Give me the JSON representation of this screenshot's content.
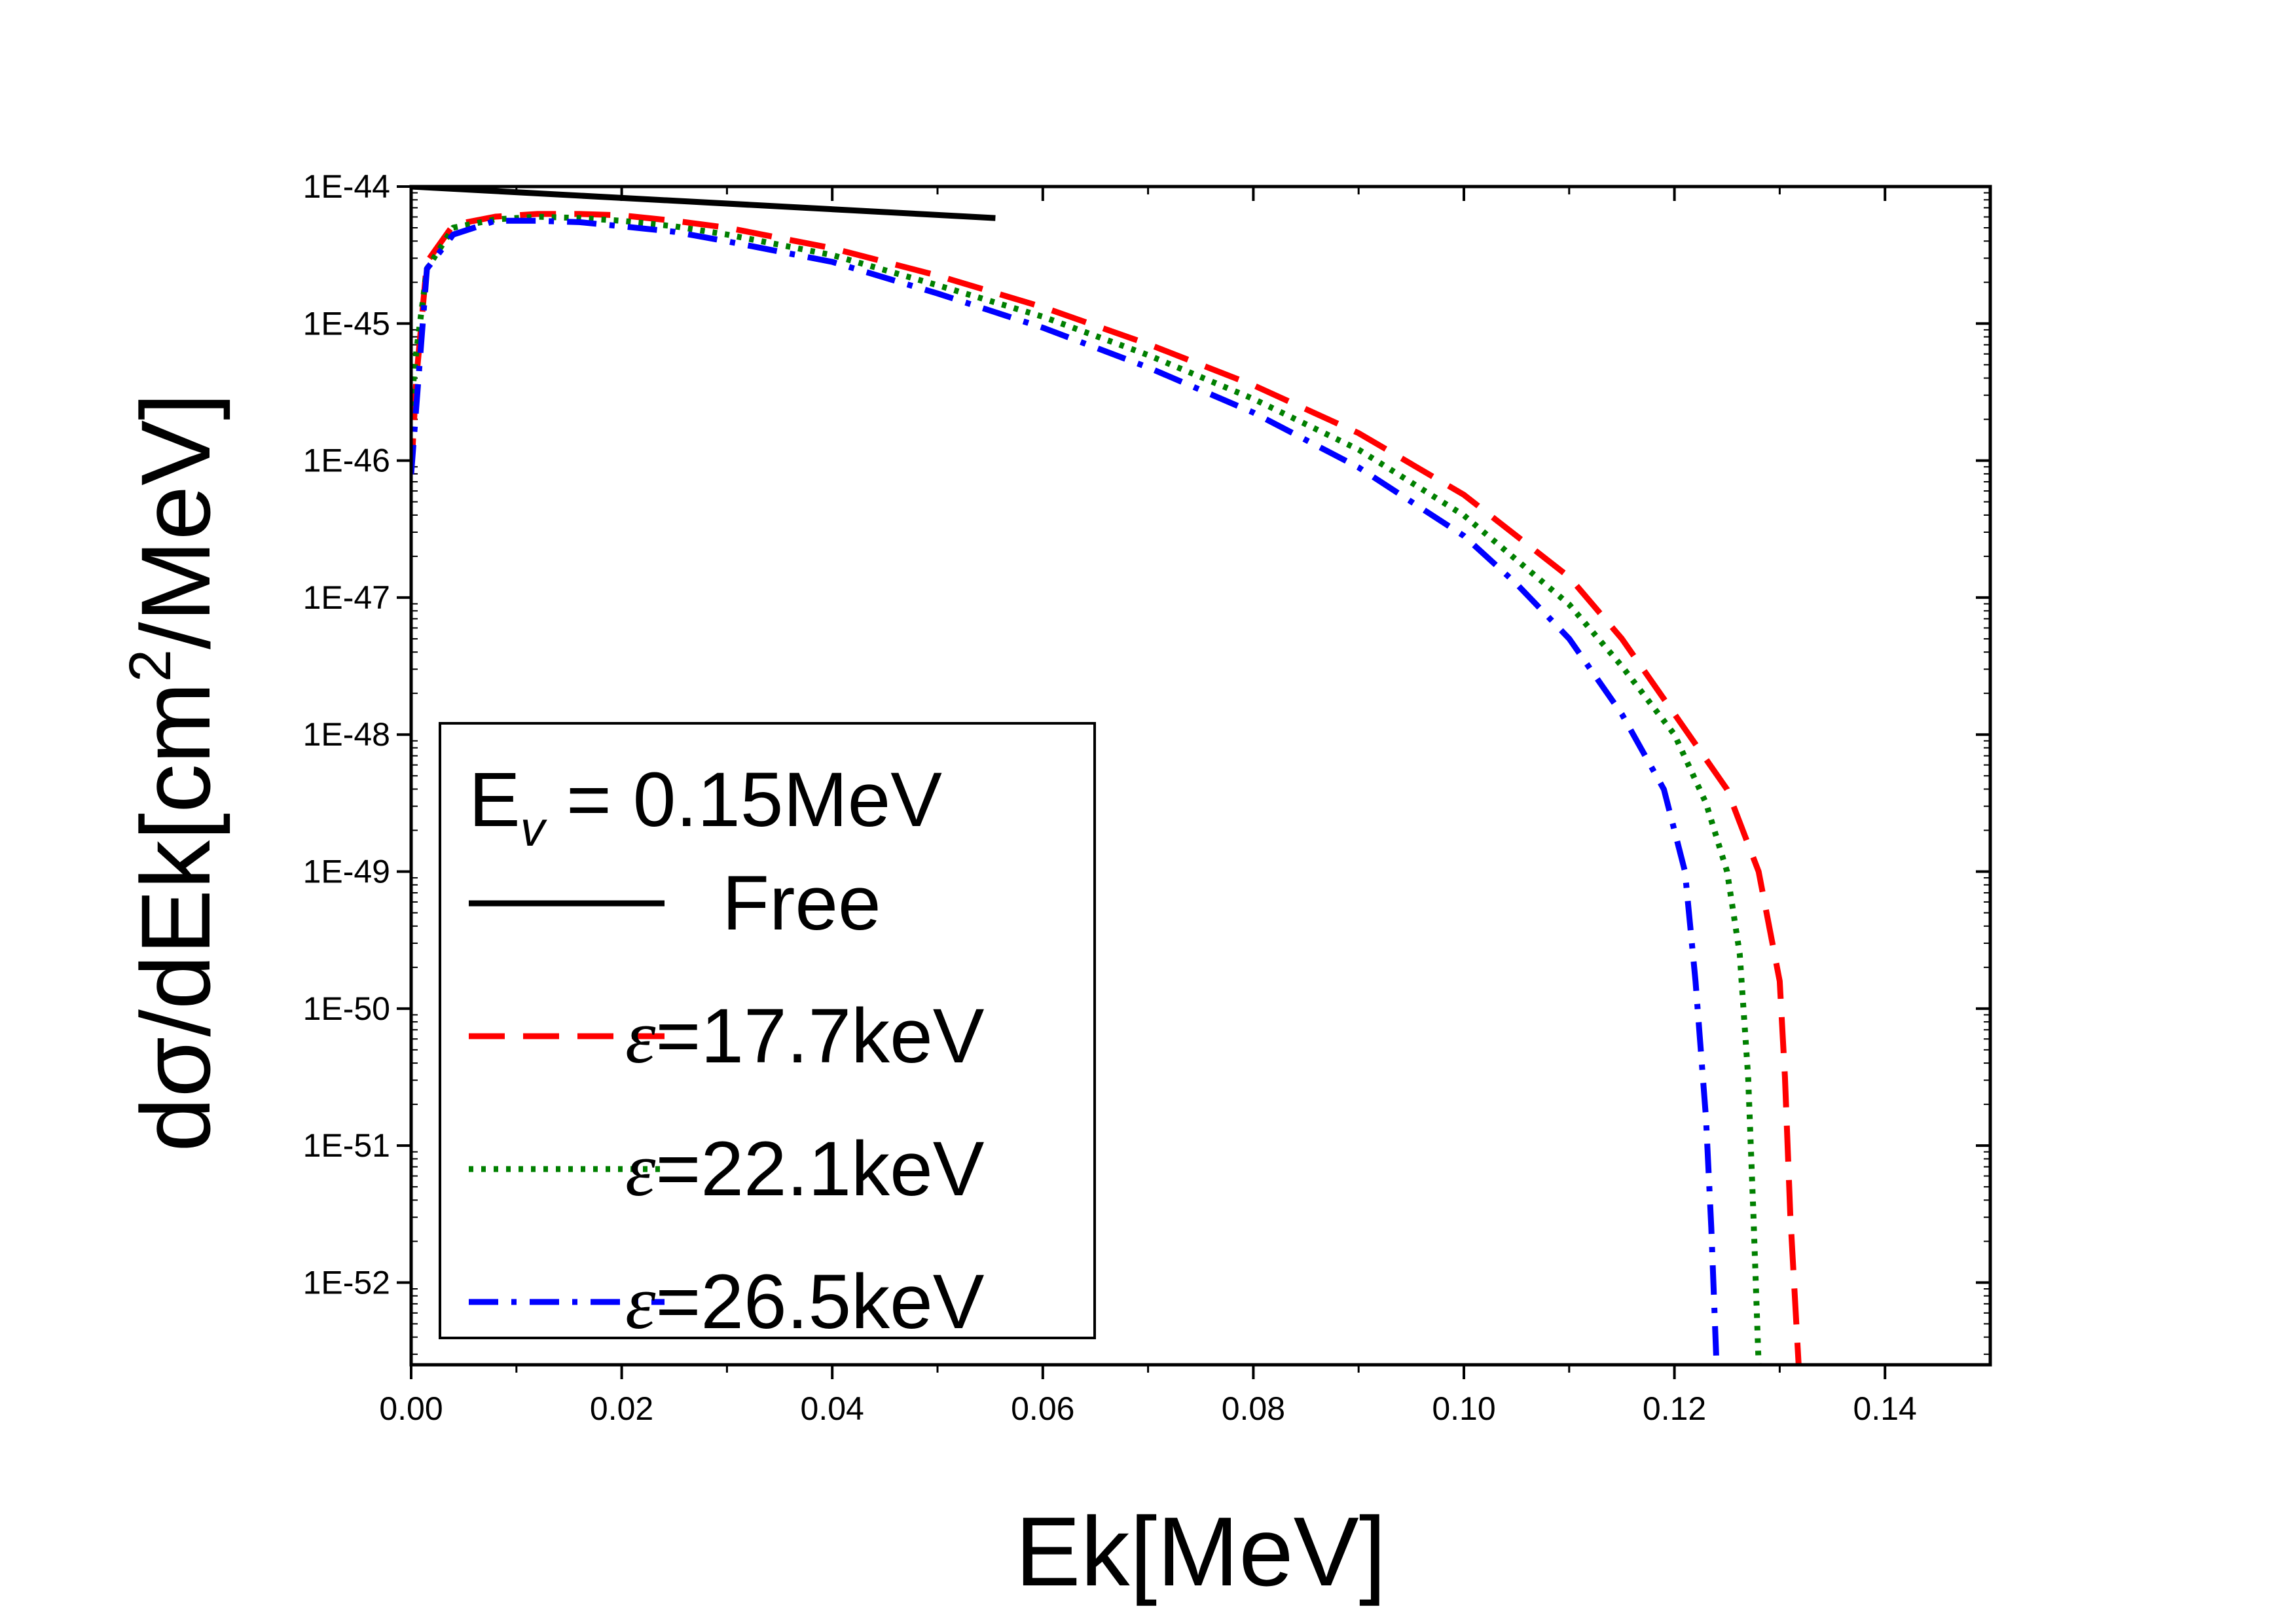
{
  "chart_data": {
    "type": "line",
    "xlabel": "Ek[MeV]",
    "ylabel_parts": {
      "before": "dσ/dEk[cm",
      "sup": "2",
      "after": "/MeV]"
    },
    "yscale": "log",
    "xlim": [
      0.0,
      0.15
    ],
    "ylim_log10": [
      -52.6,
      -44.0
    ],
    "xticks": [
      0.0,
      0.02,
      0.04,
      0.06,
      0.08,
      0.1,
      0.12,
      0.14
    ],
    "xtick_labels": [
      "0.00",
      "0.02",
      "0.04",
      "0.06",
      "0.08",
      "0.10",
      "0.12",
      "0.14"
    ],
    "yticks_log10": [
      -44,
      -45,
      -46,
      -47,
      -48,
      -49,
      -50,
      -51,
      -52
    ],
    "ytick_labels": [
      "1E-44",
      "1E-45",
      "1E-46",
      "1E-47",
      "1E-48",
      "1E-49",
      "1E-50",
      "1E-51",
      "1E-52"
    ],
    "legend": {
      "title_main": "E",
      "title_sub": "v",
      "title_rest": " = 0.15MeV",
      "placement": "lower-left"
    },
    "series": [
      {
        "name": "Free",
        "label_prefix": "",
        "label_value": "Free",
        "color": "#000000",
        "style": "solid",
        "x": [
          0.0,
          0.0555
        ],
        "log10_y": [
          -44.0,
          -44.23
        ]
      },
      {
        "name": "ε=17.7keV",
        "label_prefix": "ε",
        "label_value": "=17.7keV",
        "color": "#ff0000",
        "style": "dashed",
        "x": [
          0.0,
          0.0005,
          0.0015,
          0.004,
          0.008,
          0.012,
          0.016,
          0.02,
          0.025,
          0.03,
          0.04,
          0.05,
          0.06,
          0.07,
          0.08,
          0.09,
          0.1,
          0.11,
          0.115,
          0.12,
          0.125,
          0.128,
          0.13,
          0.1305,
          0.131,
          0.1318
        ],
        "log10_y": [
          -46.1,
          -45.4,
          -44.55,
          -44.28,
          -44.22,
          -44.2,
          -44.2,
          -44.21,
          -44.25,
          -44.3,
          -44.45,
          -44.65,
          -44.88,
          -45.15,
          -45.45,
          -45.8,
          -46.25,
          -46.85,
          -47.3,
          -47.85,
          -48.4,
          -49.0,
          -49.8,
          -50.5,
          -51.5,
          -52.6
        ]
      },
      {
        "name": "ε=22.1keV",
        "label_prefix": "ε",
        "label_value": "=22.1keV",
        "color": "#008000",
        "style": "dotted",
        "x": [
          0.0,
          0.0005,
          0.0015,
          0.004,
          0.008,
          0.012,
          0.016,
          0.02,
          0.025,
          0.03,
          0.04,
          0.05,
          0.06,
          0.07,
          0.08,
          0.09,
          0.1,
          0.11,
          0.115,
          0.12,
          0.123,
          0.125,
          0.1262,
          0.127,
          0.1275,
          0.128
        ],
        "log10_y": [
          -45.6,
          -45.2,
          -44.6,
          -44.3,
          -44.24,
          -44.22,
          -44.23,
          -44.25,
          -44.29,
          -44.35,
          -44.5,
          -44.72,
          -44.95,
          -45.23,
          -45.55,
          -45.92,
          -46.4,
          -47.05,
          -47.5,
          -48.0,
          -48.5,
          -49.0,
          -49.6,
          -50.5,
          -51.5,
          -52.6
        ]
      },
      {
        "name": "ε=26.5keV",
        "label_prefix": "ε",
        "label_value": "=26.5keV",
        "color": "#0000ff",
        "style": "dashdot",
        "x": [
          0.0,
          0.0005,
          0.0015,
          0.004,
          0.008,
          0.012,
          0.016,
          0.02,
          0.025,
          0.03,
          0.04,
          0.05,
          0.06,
          0.07,
          0.08,
          0.09,
          0.1,
          0.105,
          0.11,
          0.115,
          0.119,
          0.121,
          0.122,
          0.123,
          0.1235,
          0.124
        ],
        "log10_y": [
          -46.1,
          -45.6,
          -44.6,
          -44.35,
          -44.25,
          -44.25,
          -44.26,
          -44.29,
          -44.33,
          -44.4,
          -44.55,
          -44.78,
          -45.03,
          -45.32,
          -45.65,
          -46.05,
          -46.55,
          -46.9,
          -47.3,
          -47.85,
          -48.4,
          -49.0,
          -49.8,
          -50.8,
          -51.6,
          -52.6
        ]
      }
    ]
  }
}
